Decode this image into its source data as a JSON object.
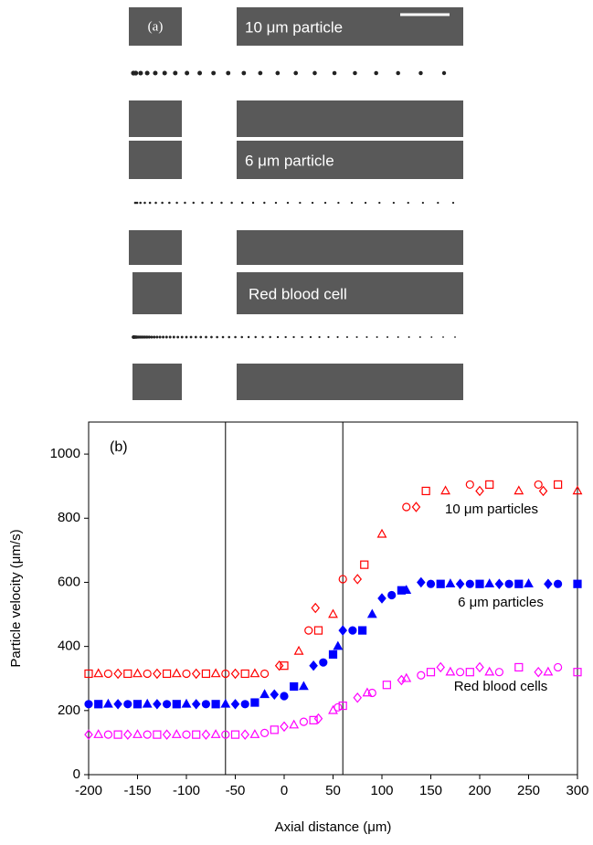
{
  "panel_a": {
    "label": "(a)",
    "rows": [
      "10 μm particle",
      "6 μm particle",
      "Red blood cell"
    ]
  },
  "chart_data": {
    "type": "scatter",
    "panel_label": "(b)",
    "x_label": "Axial distance (μm)",
    "y_label": "Particle velocity (μm/s)",
    "xlim": [
      -200,
      300
    ],
    "xticks": [
      -200,
      -150,
      -100,
      -50,
      0,
      50,
      100,
      150,
      200,
      250,
      300
    ],
    "ylim": [
      0,
      1100
    ],
    "yticks": [
      0,
      200,
      400,
      600,
      800,
      1000
    ],
    "vlines": [
      -60,
      60
    ],
    "annotations": [
      "10 μm particles",
      "6 μm particles",
      "Red blood cells"
    ],
    "series": [
      {
        "color": "#ff0000",
        "filled": false,
        "markers": [
          "square",
          "triangle",
          "circle",
          "diamond"
        ],
        "x": [
          -200,
          -190,
          -180,
          -170,
          -160,
          -150,
          -140,
          -130,
          -120,
          -110,
          -100,
          -90,
          -80,
          -70,
          -60,
          -50,
          -40,
          -30,
          -20,
          -5,
          0,
          15,
          25,
          32,
          35,
          50,
          60,
          75,
          82,
          100,
          125,
          135,
          145,
          165,
          190,
          200,
          210,
          240,
          260,
          265,
          280,
          300
        ],
        "values": [
          315,
          315,
          315,
          315,
          315,
          315,
          315,
          315,
          315,
          315,
          315,
          315,
          315,
          315,
          315,
          315,
          315,
          315,
          315,
          340,
          340,
          385,
          450,
          520,
          450,
          500,
          610,
          610,
          655,
          750,
          835,
          835,
          885,
          885,
          905,
          885,
          905,
          885,
          905,
          885,
          905,
          885
        ]
      },
      {
        "color": "#0000ff",
        "filled": true,
        "markers": [
          "circle",
          "square",
          "triangle",
          "diamond"
        ],
        "x": [
          -200,
          -190,
          -180,
          -170,
          -160,
          -150,
          -140,
          -130,
          -120,
          -110,
          -100,
          -90,
          -80,
          -70,
          -60,
          -50,
          -40,
          -30,
          -20,
          -10,
          0,
          10,
          20,
          30,
          40,
          50,
          55,
          60,
          70,
          80,
          90,
          100,
          110,
          120,
          125,
          140,
          150,
          160,
          170,
          180,
          190,
          200,
          210,
          220,
          230,
          240,
          250,
          270,
          280,
          300
        ],
        "values": [
          220,
          220,
          220,
          220,
          220,
          220,
          220,
          220,
          220,
          220,
          220,
          220,
          220,
          220,
          220,
          220,
          220,
          225,
          250,
          250,
          245,
          275,
          275,
          340,
          350,
          375,
          400,
          450,
          450,
          450,
          500,
          550,
          560,
          575,
          575,
          600,
          595,
          595,
          595,
          595,
          595,
          595,
          595,
          595,
          595,
          595,
          595,
          595,
          595,
          595
        ]
      },
      {
        "color": "#ff00ff",
        "filled": false,
        "markers": [
          "diamond",
          "triangle",
          "circle",
          "square"
        ],
        "x": [
          -200,
          -190,
          -180,
          -170,
          -160,
          -150,
          -140,
          -130,
          -120,
          -110,
          -100,
          -90,
          -80,
          -70,
          -60,
          -50,
          -40,
          -30,
          -20,
          -10,
          0,
          10,
          20,
          30,
          35,
          50,
          55,
          60,
          75,
          85,
          90,
          105,
          120,
          125,
          140,
          150,
          160,
          170,
          180,
          190,
          200,
          210,
          220,
          240,
          260,
          270,
          280,
          300
        ],
        "values": [
          125,
          125,
          125,
          125,
          125,
          125,
          125,
          125,
          125,
          125,
          125,
          125,
          125,
          125,
          125,
          125,
          125,
          125,
          130,
          140,
          150,
          155,
          165,
          170,
          175,
          200,
          210,
          215,
          240,
          255,
          255,
          280,
          295,
          300,
          310,
          320,
          335,
          320,
          320,
          320,
          335,
          320,
          320,
          335,
          320,
          320,
          335,
          320
        ]
      }
    ]
  }
}
